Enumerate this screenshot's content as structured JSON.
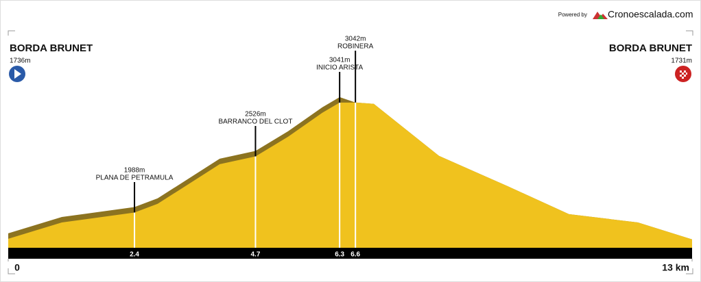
{
  "header": {
    "powered": "Powered by",
    "brand": "Cronoescalada.com"
  },
  "chart_data": {
    "type": "area",
    "start": {
      "name": "BORDA BRUNET",
      "elevation_label": "1736m"
    },
    "end": {
      "name": "BORDA BRUNET",
      "elevation_label": "1731m"
    },
    "x": [
      0,
      1.02,
      2.4,
      2.84,
      4.02,
      4.7,
      5.32,
      5.97,
      6.3,
      6.6,
      6.95,
      8.19,
      9.49,
      10.66,
      11.97,
      13
    ],
    "values": [
      1736,
      1893,
      1988,
      2071,
      2451,
      2526,
      2714,
      2944,
      3041,
      3042,
      3029,
      2530,
      2241,
      1972,
      1893,
      1731
    ],
    "color": "#f0c21e",
    "waypoints": [
      {
        "x": 2.4,
        "elevation": 1988,
        "elevation_label": "1988m",
        "name": "PLANA DE PETRAMULA"
      },
      {
        "x": 4.7,
        "elevation": 2526,
        "elevation_label": "2526m",
        "name": "BARRANCO DEL CLOT"
      },
      {
        "x": 6.3,
        "elevation": 3041,
        "elevation_label": "3041m",
        "name": "INICIO ARISTA"
      },
      {
        "x": 6.6,
        "elevation": 3042,
        "elevation_label": "3042m",
        "name": "ROBINERA"
      }
    ],
    "xlim": [
      0,
      13
    ],
    "xticks": [
      0,
      {
        "value": 13,
        "label": "13 km"
      }
    ],
    "ylim": [
      1650,
      3900
    ]
  }
}
